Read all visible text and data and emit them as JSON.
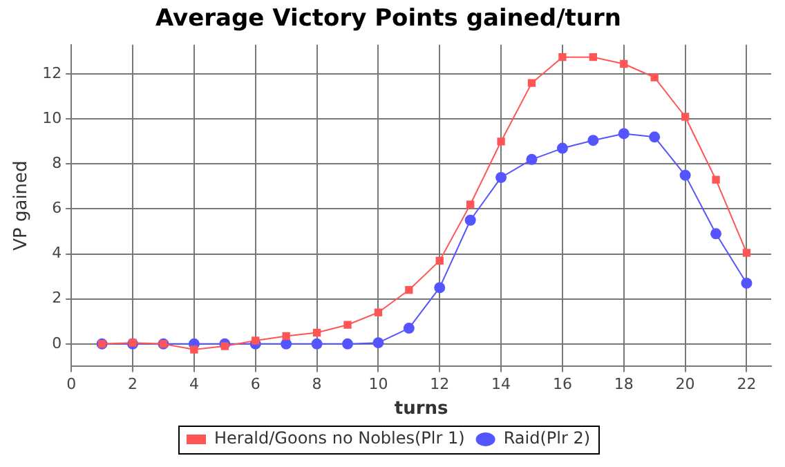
{
  "chart_data": {
    "type": "line",
    "title": "Average Victory Points gained/turn",
    "xlabel": "turns",
    "ylabel": "VP gained",
    "x": [
      1,
      2,
      3,
      4,
      5,
      6,
      7,
      8,
      9,
      10,
      11,
      12,
      13,
      14,
      15,
      16,
      17,
      18,
      19,
      20,
      21,
      22
    ],
    "series": [
      {
        "name": "Herald/Goons no Nobles(Plr 1)",
        "color": "#ff5555",
        "marker": "square",
        "values": [
          0,
          0.05,
          0,
          -0.25,
          -0.1,
          0.15,
          0.35,
          0.5,
          0.85,
          1.4,
          2.4,
          3.7,
          6.2,
          9.0,
          11.6,
          12.75,
          12.75,
          12.45,
          11.85,
          10.1,
          7.3,
          4.05
        ]
      },
      {
        "name": "Raid(Plr 2)",
        "color": "#5555ff",
        "marker": "circle",
        "values": [
          0,
          0,
          0,
          0,
          0,
          0,
          0,
          0,
          0,
          0.05,
          0.7,
          2.5,
          5.5,
          7.4,
          8.2,
          8.7,
          9.05,
          9.35,
          9.2,
          7.5,
          4.9,
          2.7
        ]
      }
    ],
    "xlim": [
      0,
      22.8
    ],
    "xticks": [
      0,
      2,
      4,
      6,
      8,
      10,
      12,
      14,
      16,
      18,
      20,
      22
    ],
    "ylim": [
      -1,
      13.3
    ],
    "yticks": [
      0,
      2,
      4,
      6,
      8,
      10,
      12
    ],
    "grid": true,
    "legend": "bottom",
    "line_style": "solid"
  }
}
